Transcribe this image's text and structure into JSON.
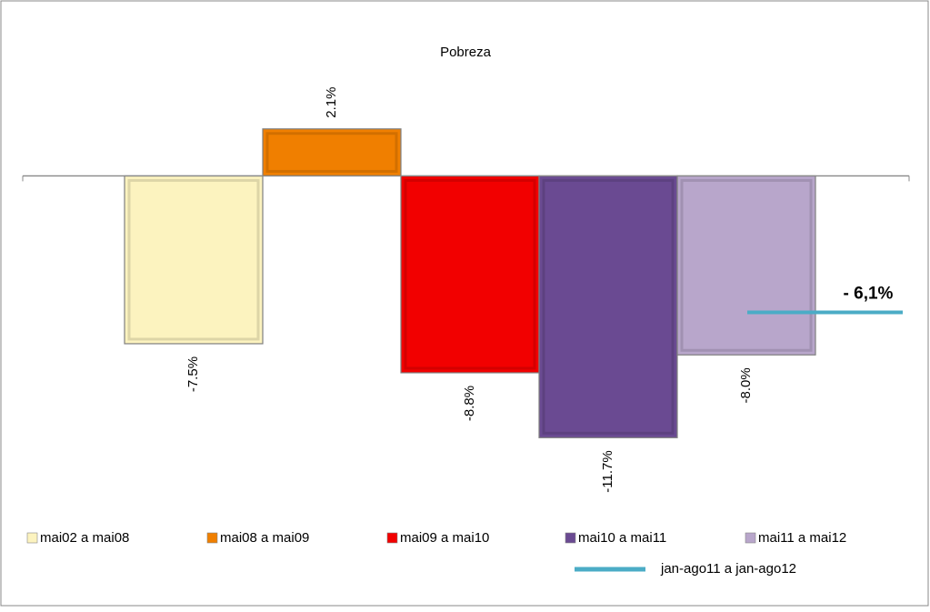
{
  "chart_data": {
    "type": "bar",
    "title": "Pobreza",
    "ylim": [
      -12.5,
      4
    ],
    "series": [
      {
        "name": "mai02 a mai08",
        "color": "#fcf3bf",
        "values": [
          -7.5
        ],
        "value_labels": [
          "-7.5%"
        ]
      },
      {
        "name": "mai08 a mai09",
        "color": "#f07f00",
        "values": [
          2.1
        ],
        "value_labels": [
          "2.1%"
        ]
      },
      {
        "name": "mai09 a mai10",
        "color": "#f20000",
        "values": [
          -8.8
        ],
        "value_labels": [
          "-8.8%"
        ]
      },
      {
        "name": "mai10 a mai11",
        "color": "#6a4a92",
        "values": [
          -11.7
        ],
        "value_labels": [
          "-11.7%"
        ]
      },
      {
        "name": "mai11 a mai12",
        "color": "#b8a6cb",
        "values": [
          -8.0
        ],
        "value_labels": [
          "-8.0%"
        ]
      },
      {
        "name": "jan-ago11 a jan-ago12",
        "type": "line",
        "color": "#4bacc6",
        "values": [
          -6.1
        ],
        "value_labels": [
          "- 6,1%"
        ]
      }
    ]
  }
}
